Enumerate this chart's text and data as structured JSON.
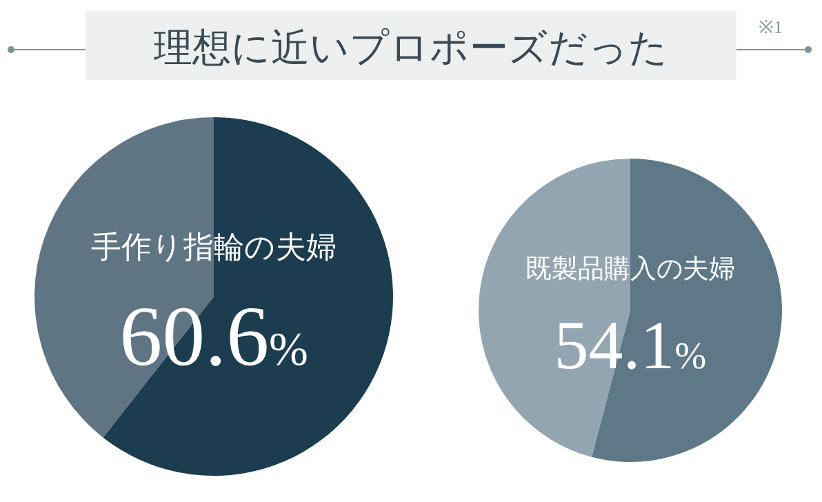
{
  "chart_data": [
    {
      "type": "pie",
      "title": "理想に近いプロポーズだった",
      "annotations": [
        "※1"
      ],
      "categories": [
        "手作り指輪の夫婦",
        null
      ],
      "values": [
        60.6,
        39.4
      ],
      "colors": [
        "#1c3d4f",
        "#5f7584"
      ],
      "value_labels": [
        "60.6%",
        null
      ]
    },
    {
      "type": "pie",
      "categories": [
        "既製品購入の夫婦",
        null
      ],
      "values": [
        54.1,
        45.9
      ],
      "colors": [
        "#5e7887",
        "#93a5b0"
      ],
      "value_labels": [
        "54.1%",
        null
      ]
    }
  ]
}
